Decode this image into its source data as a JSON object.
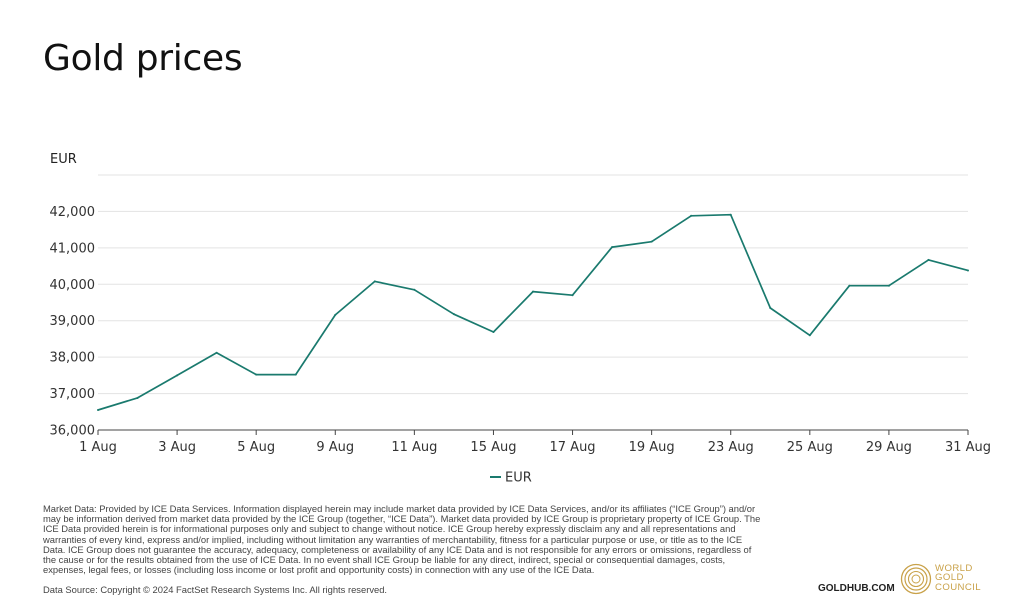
{
  "page": {
    "title": "Gold prices",
    "disclaimer": "Market Data: Provided by ICE Data Services. Information displayed herein may include market data provided by ICE Data Services, and/or its affiliates (“ICE Group”) and/or may be information derived from market data provided by the ICE Group (together, “ICE Data”). Market data provided by ICE Group is proprietary property of ICE Group. The ICE Data provided herein is for informational purposes only and subject to change without notice. ICE Group hereby expressly disclaim any and all representations and warranties of every kind, express and/or implied, including without limitation any warranties of merchantability, fitness for a particular purpose or use, or title as to the ICE Data. ICE Group does not guarantee the accuracy, adequacy, completeness or availability of any ICE Data and is not responsible for any errors or omissions, regardless of the cause or for the results obtained from the use of ICE Data. In no event shall ICE Group be liable for any direct, indirect, special or consequential damages, costs, expenses, legal fees, or losses (including loss income or lost profit and opportunity costs) in connection with any use of the ICE Data.",
    "source": "Data Source: Copyright © 2024 FactSet Research Systems Inc. All rights reserved.",
    "site": "GOLDHUB.COM",
    "logo_lines": [
      "WORLD",
      "GOLD",
      "COUNCIL"
    ],
    "logo_color": "#c9a24a"
  },
  "chart_data": {
    "type": "line",
    "title": "Gold prices",
    "ylabel": "EUR",
    "xlabel": "",
    "ylim": [
      36000,
      43000
    ],
    "yticks": [
      36000,
      37000,
      38000,
      39000,
      40000,
      41000,
      42000
    ],
    "ytick_labels": [
      "36,000",
      "37,000",
      "38,000",
      "39,000",
      "40,000",
      "41,000",
      "42,000"
    ],
    "xtick_labels": [
      "1 Aug",
      "3 Aug",
      "5 Aug",
      "9 Aug",
      "11 Aug",
      "15 Aug",
      "17 Aug",
      "19 Aug",
      "23 Aug",
      "25 Aug",
      "29 Aug",
      "31 Aug"
    ],
    "legend": "bottom-center",
    "grid": true,
    "series": [
      {
        "name": "EUR",
        "color": "#1a7a6e",
        "x": [
          "1 Aug",
          "2 Aug",
          "3 Aug",
          "4 Aug",
          "5 Aug",
          "8 Aug",
          "9 Aug",
          "10 Aug",
          "11 Aug",
          "12 Aug",
          "15 Aug",
          "16 Aug",
          "17 Aug",
          "18 Aug",
          "19 Aug",
          "22 Aug",
          "23 Aug",
          "24 Aug",
          "25 Aug",
          "26 Aug",
          "29 Aug",
          "30 Aug",
          "31 Aug"
        ],
        "values": [
          36550,
          36880,
          37500,
          38120,
          37520,
          37520,
          39160,
          40080,
          39850,
          39180,
          38690,
          39800,
          39700,
          41020,
          41170,
          41880,
          41910,
          39350,
          38600,
          39960,
          39960,
          40670,
          40380
        ]
      }
    ]
  }
}
